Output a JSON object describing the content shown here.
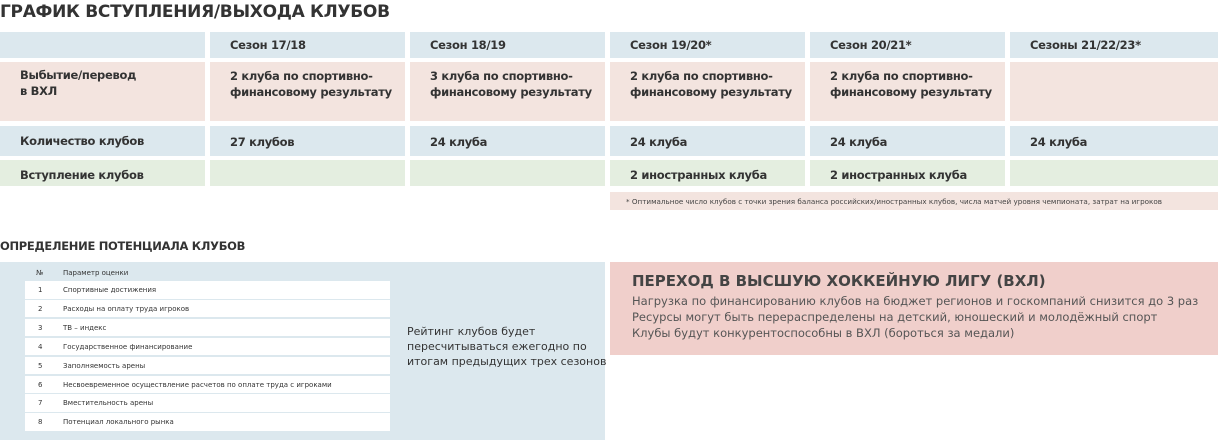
{
  "title": "ГРАФИК ВСТУПЛЕНИЯ/ВЫХОДА КЛУБОВ",
  "schedule": {
    "columns": [
      "Сезон 17/18",
      "Сезон 18/19",
      "Сезон 19/20*",
      "Сезон 20/21*",
      "Сезоны 21/22/23*"
    ],
    "rows": [
      {
        "label": [
          "Выбытие/перевод",
          "в ВХЛ"
        ],
        "cells": [
          [
            "2 клуба по спортивно-",
            "финансовому результату"
          ],
          [
            "3 клуба по спортивно-",
            "финансовому результату"
          ],
          [
            "2 клуба по спортивно-",
            "финансовому результату"
          ],
          [
            "2 клуба по спортивно-",
            "финансовому результату"
          ],
          null
        ]
      },
      {
        "label": [
          "Количество клубов"
        ],
        "cells": [
          [
            "27 клубов"
          ],
          [
            "24 клуба"
          ],
          [
            "24 клуба"
          ],
          [
            "24 клуба"
          ],
          [
            "24 клуба"
          ]
        ]
      },
      {
        "label": [
          "Вступление клубов"
        ],
        "cells": [
          null,
          null,
          [
            "2 иностранных клуба"
          ],
          [
            "2 иностранных клуба"
          ],
          null
        ]
      }
    ],
    "footnote": "* Оптимальное число клубов с точки зрения баланса российских/иностранных клубов, числа матчей уровня чемпионата, затрат на игроков"
  },
  "potential": {
    "title": "ОПРЕДЕЛЕНИЕ ПОТЕНЦИАЛА КЛУБОВ",
    "header": [
      "№",
      "Параметр оценки"
    ],
    "rows": [
      [
        "1",
        "Спортивные достижения"
      ],
      [
        "2",
        "Расходы на оплату труда игроков"
      ],
      [
        "3",
        "ТВ – индекс"
      ],
      [
        "4",
        "Государственное финансирование"
      ],
      [
        "5",
        "Заполняемость арены"
      ],
      [
        "6",
        "Несвоевременное осуществление расчетов по оплате труда с игроками"
      ],
      [
        "7",
        "Вместительность арены"
      ],
      [
        "8",
        "Потенциал локального рынка"
      ]
    ],
    "note": [
      "Рейтинг клубов будет",
      "пересчитываться ежегодно по",
      "итогам предыдущих трех сезонов"
    ]
  },
  "vhl": {
    "title": "ПЕРЕХОД В ВЫСШУЮ ХОККЕЙНУЮ ЛИГУ (ВХЛ)",
    "lines": [
      "Нагрузка по финансированию клубов на бюджет регионов и госкомпаний снизится до 3 раз",
      "Ресурсы могут быть перераспределены на детский, юношеский и молодёжный спорт",
      "Клубы будут конкурентоспособны в ВХЛ (бороться за медали)"
    ]
  }
}
